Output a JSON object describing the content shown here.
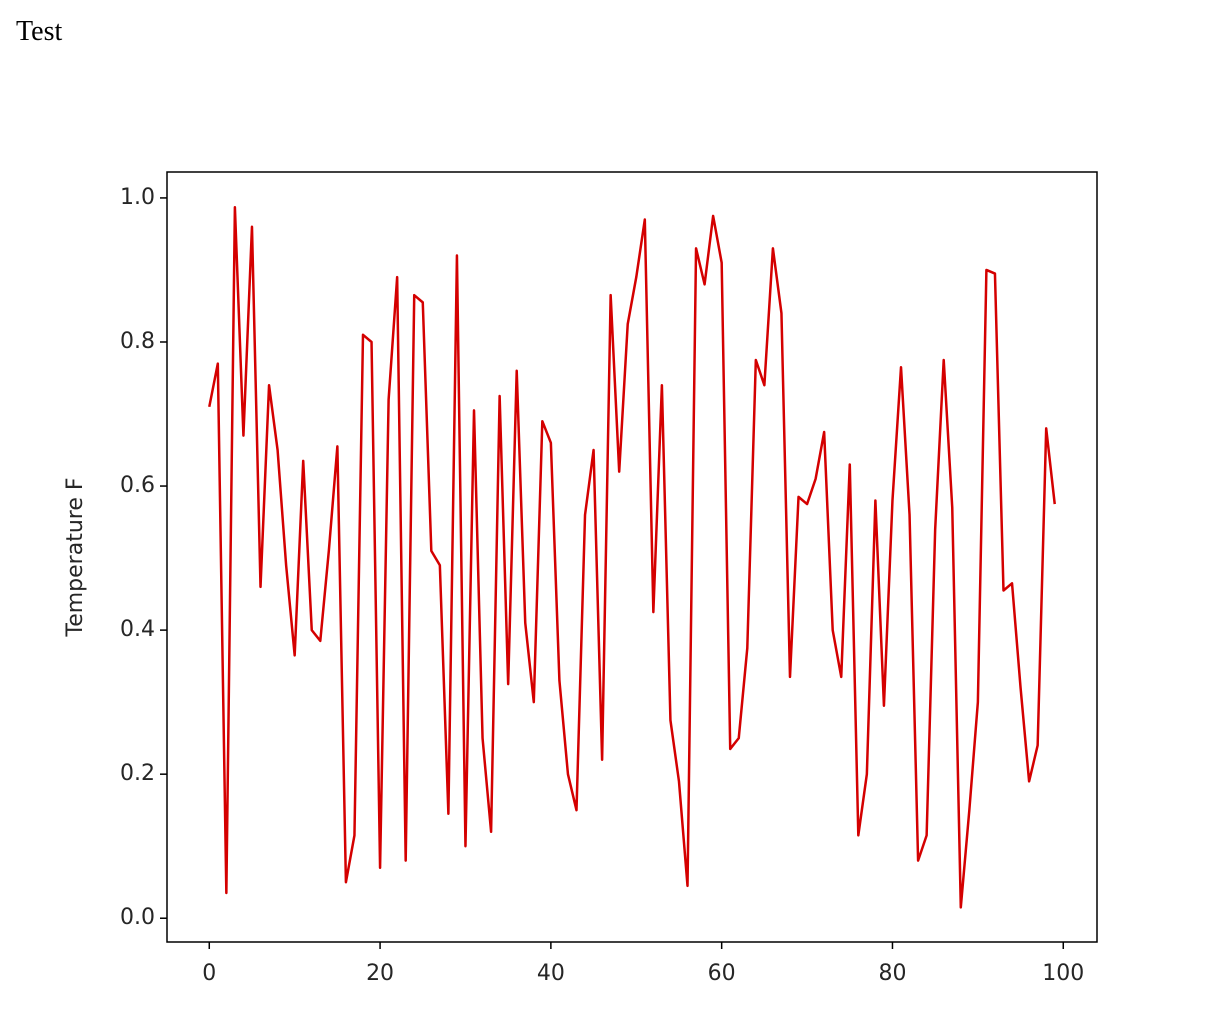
{
  "heading": "Test",
  "chart_data": {
    "type": "line",
    "ylabel": "Temperature F",
    "x": [
      0,
      1,
      2,
      3,
      4,
      5,
      6,
      7,
      8,
      9,
      10,
      11,
      12,
      13,
      14,
      15,
      16,
      17,
      18,
      19,
      20,
      21,
      22,
      23,
      24,
      25,
      26,
      27,
      28,
      29,
      30,
      31,
      32,
      33,
      34,
      35,
      36,
      37,
      38,
      39,
      40,
      41,
      42,
      43,
      44,
      45,
      46,
      47,
      48,
      49,
      50,
      51,
      52,
      53,
      54,
      55,
      56,
      57,
      58,
      59,
      60,
      61,
      62,
      63,
      64,
      65,
      66,
      67,
      68,
      69,
      70,
      71,
      72,
      73,
      74,
      75,
      76,
      77,
      78,
      79,
      80,
      81,
      82,
      83,
      84,
      85,
      86,
      87,
      88,
      89,
      90,
      91,
      92,
      93,
      94,
      95,
      96,
      97,
      98,
      99
    ],
    "series": [
      {
        "color": "#d40000",
        "values": [
          0.71,
          0.77,
          0.035,
          0.987,
          0.67,
          0.96,
          0.46,
          0.74,
          0.65,
          0.49,
          0.365,
          0.635,
          0.4,
          0.385,
          0.51,
          0.655,
          0.05,
          0.115,
          0.81,
          0.8,
          0.07,
          0.72,
          0.89,
          0.08,
          0.865,
          0.855,
          0.51,
          0.49,
          0.145,
          0.92,
          0.1,
          0.705,
          0.25,
          0.12,
          0.725,
          0.325,
          0.76,
          0.41,
          0.3,
          0.69,
          0.66,
          0.33,
          0.2,
          0.15,
          0.56,
          0.65,
          0.22,
          0.865,
          0.62,
          0.825,
          0.89,
          0.97,
          0.425,
          0.74,
          0.275,
          0.19,
          0.045,
          0.93,
          0.88,
          0.975,
          0.91,
          0.235,
          0.25,
          0.375,
          0.775,
          0.74,
          0.93,
          0.84,
          0.335,
          0.585,
          0.575,
          0.61,
          0.675,
          0.4,
          0.335,
          0.63,
          0.115,
          0.2,
          0.58,
          0.295,
          0.58,
          0.765,
          0.56,
          0.08,
          0.115,
          0.54,
          0.775,
          0.57,
          0.015,
          0.15,
          0.3,
          0.9,
          0.895,
          0.455,
          0.465,
          0.32,
          0.19,
          0.24,
          0.68,
          0.575
        ]
      }
    ],
    "xlim": [
      -4.95,
      103.95
    ],
    "xticks": [
      0,
      20,
      40,
      60,
      80,
      100
    ],
    "ylim": [
      -0.033,
      1.036
    ],
    "yticks": [
      {
        "value": 0,
        "label": "0.0"
      },
      0.2,
      0.4,
      0.6,
      0.8,
      {
        "value": 1,
        "label": "1.0"
      }
    ]
  }
}
